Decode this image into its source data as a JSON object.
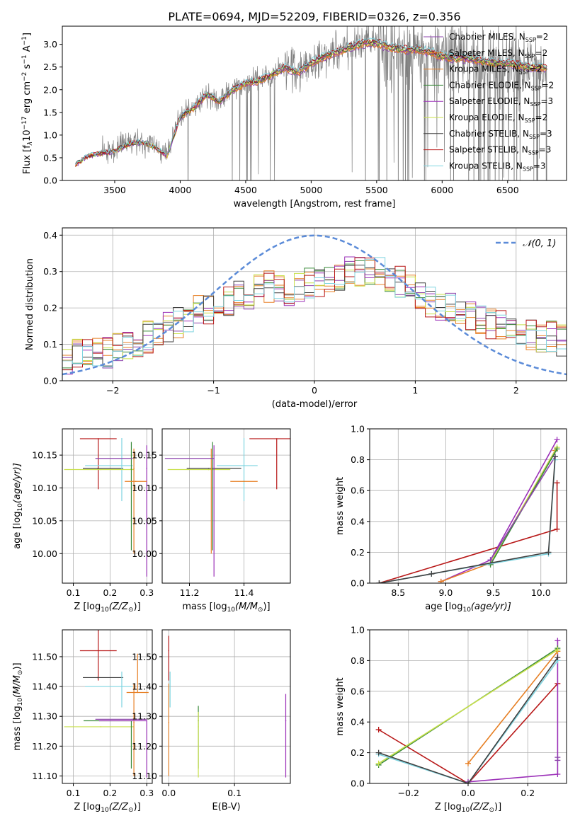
{
  "figure_title": "PLATE=0694, MJD=52209, FIBERID=0326, z=0.356",
  "colors": {
    "Chabrier MILES": "#8e44ad",
    "Salpeter MILES": "#e67e22",
    "Kroupa MILES": "#e8822a",
    "Chabrier ELODIE": "#3a8a3a",
    "Salpeter ELODIE": "#9b30b8",
    "Kroupa ELODIE": "#c8e04a",
    "Chabrier STELIB": "#404040",
    "Salpeter STELIB": "#b81818",
    "Kroupa STELIB": "#7fd4e0",
    "data": "#7f7f7f",
    "normal": "#5b8bd8"
  },
  "chart_data": [
    {
      "id": "spectrum",
      "type": "line",
      "title": "PLATE=0694, MJD=52209, FIBERID=0326, z=0.356",
      "xlabel": "wavelength [Angstrom, rest frame]",
      "ylabel_parts": [
        "Flux [f",
        "λ",
        "10",
        "−17",
        " erg cm",
        "−2",
        " s",
        "−1",
        " A",
        "−1",
        "]"
      ],
      "xlim": [
        3100,
        6950
      ],
      "ylim": [
        0,
        3.4
      ],
      "xticks": [
        3500,
        4000,
        4500,
        5000,
        5500,
        6000,
        6500
      ],
      "yticks": [
        0.0,
        0.5,
        1.0,
        1.5,
        2.0,
        2.5,
        3.0
      ],
      "grid": false,
      "legend_position": "top-right",
      "legend": [
        {
          "label": "Chabrier MILES, N",
          "sub": "SSP",
          "tail": "=2",
          "key": "Chabrier MILES"
        },
        {
          "label": "Salpeter MILES, N",
          "sub": "SSP",
          "tail": "=2",
          "key": "Salpeter MILES"
        },
        {
          "label": "Kroupa MILES, N",
          "sub": "SSP",
          "tail": "=2",
          "key": "Kroupa MILES"
        },
        {
          "label": "Chabrier ELODIE, N",
          "sub": "SSP",
          "tail": "=2",
          "key": "Chabrier ELODIE"
        },
        {
          "label": "Salpeter ELODIE, N",
          "sub": "SSP",
          "tail": "=3",
          "key": "Salpeter ELODIE"
        },
        {
          "label": "Kroupa ELODIE, N",
          "sub": "SSP",
          "tail": "=2",
          "key": "Kroupa ELODIE"
        },
        {
          "label": "Chabrier STELIB, N",
          "sub": "SSP",
          "tail": "=3",
          "key": "Chabrier STELIB"
        },
        {
          "label": "Salpeter STELIB, N",
          "sub": "SSP",
          "tail": "=3",
          "key": "Salpeter STELIB"
        },
        {
          "label": "Kroupa STELIB, N",
          "sub": "SSP",
          "tail": "=3",
          "key": "Kroupa STELIB"
        }
      ],
      "continuum": {
        "x": [
          3200,
          3300,
          3400,
          3500,
          3600,
          3700,
          3800,
          3900,
          4000,
          4100,
          4200,
          4300,
          4400,
          4500,
          4600,
          4700,
          4800,
          4900,
          5000,
          5100,
          5200,
          5300,
          5400,
          5500,
          5600,
          5700,
          5800,
          5900,
          6000,
          6100,
          6200,
          6300,
          6400,
          6500,
          6600,
          6700,
          6800
        ],
        "y": [
          0.35,
          0.55,
          0.6,
          0.65,
          0.8,
          0.85,
          0.75,
          0.55,
          1.4,
          1.6,
          1.9,
          1.75,
          2.0,
          2.15,
          2.2,
          2.35,
          2.5,
          2.4,
          2.6,
          2.75,
          2.85,
          2.95,
          3.05,
          3.05,
          2.95,
          2.9,
          2.9,
          2.85,
          2.75,
          2.7,
          2.7,
          2.65,
          2.6,
          2.6,
          2.55,
          2.5,
          2.5
        ]
      },
      "data_range": [
        3200,
        6800
      ]
    },
    {
      "id": "residuals",
      "type": "bar",
      "xlabel": "(data-model)/error",
      "ylabel": "Normed distribution",
      "xlim": [
        -2.5,
        2.5
      ],
      "ylim": [
        0,
        0.42
      ],
      "xticks": [
        -2,
        -1,
        0,
        1,
        2
      ],
      "yticks": [
        0.0,
        0.1,
        0.2,
        0.3,
        0.4
      ],
      "grid": true,
      "legend_position": "top-right",
      "normal_label": "𝒩(0, 1)",
      "bin_edges": [
        -2.5,
        -2.4,
        -2.3,
        -2.2,
        -2.1,
        -2.0,
        -1.9,
        -1.8,
        -1.7,
        -1.6,
        -1.5,
        -1.4,
        -1.3,
        -1.2,
        -1.1,
        -1.0,
        -0.9,
        -0.8,
        -0.7,
        -0.6,
        -0.5,
        -0.4,
        -0.3,
        -0.2,
        -0.1,
        0.0,
        0.1,
        0.2,
        0.3,
        0.4,
        0.5,
        0.6,
        0.7,
        0.8,
        0.9,
        1.0,
        1.1,
        1.2,
        1.3,
        1.4,
        1.5,
        1.6,
        1.7,
        1.8,
        1.9,
        2.0,
        2.1,
        2.2,
        2.3,
        2.4,
        2.5
      ],
      "envelope": [
        0.06,
        0.07,
        0.08,
        0.08,
        0.08,
        0.09,
        0.1,
        0.11,
        0.12,
        0.13,
        0.15,
        0.16,
        0.17,
        0.19,
        0.2,
        0.21,
        0.22,
        0.23,
        0.24,
        0.25,
        0.26,
        0.26,
        0.25,
        0.26,
        0.27,
        0.27,
        0.28,
        0.29,
        0.3,
        0.3,
        0.31,
        0.3,
        0.28,
        0.27,
        0.26,
        0.24,
        0.22,
        0.21,
        0.2,
        0.19,
        0.18,
        0.17,
        0.16,
        0.15,
        0.14,
        0.14,
        0.13,
        0.12,
        0.12,
        0.11
      ]
    },
    {
      "id": "age-vs-Z",
      "type": "scatter",
      "xlabel_parts": [
        "Z [log",
        "10",
        "(Z/Z",
        "⊙",
        ")]"
      ],
      "ylabel_parts": [
        "age  [log",
        "10",
        "(age/yr)]"
      ],
      "xlim": [
        0.07,
        0.315
      ],
      "ylim": [
        9.955,
        10.19
      ],
      "xticks": [
        0.1,
        0.2,
        0.3
      ],
      "yticks": [
        10.0,
        10.05,
        10.1,
        10.15
      ],
      "grid": true,
      "points": [
        {
          "key": "Salpeter STELIB",
          "x": 0.168,
          "y": 10.175,
          "xerr": [
            0.05,
            0.05
          ],
          "yerr": [
            0.077,
            0.0
          ]
        },
        {
          "key": "Chabrier STELIB",
          "x": 0.166,
          "y": 10.13,
          "xerr": [
            0.04,
            0.07
          ],
          "yerr": [
            0.0,
            0.0
          ]
        },
        {
          "key": "Kroupa STELIB",
          "x": 0.232,
          "y": 10.134,
          "xerr": [
            0.1,
            0.03
          ],
          "yerr": [
            0.054,
            0.042
          ]
        },
        {
          "key": "Kroupa ELODIE",
          "x": 0.175,
          "y": 10.128,
          "xerr": [
            0.1,
            0.09
          ],
          "yerr": [
            0.0,
            0.0
          ]
        },
        {
          "key": "Chabrier ELODIE",
          "x": 0.258,
          "y": 10.13,
          "xerr": [
            0.0,
            0.0
          ],
          "yerr": [
            0.125,
            0.04
          ]
        },
        {
          "key": "Kroupa MILES",
          "x": 0.265,
          "y": 10.13,
          "xerr": [
            0.0,
            0.0
          ],
          "yerr": [
            0.13,
            0.03
          ]
        },
        {
          "key": "Salpeter ELODIE",
          "x": 0.3,
          "y": 10.13,
          "xerr": [
            0.0,
            0.0
          ],
          "yerr": [
            0.165,
            0.035
          ]
        },
        {
          "key": "Chabrier MILES",
          "x": 0.26,
          "y": 10.145,
          "xerr": [
            0.1,
            0.0
          ],
          "yerr": [
            0.0,
            0.0
          ]
        },
        {
          "key": "Salpeter MILES",
          "x": 0.27,
          "y": 10.11,
          "xerr": [
            0.03,
            0.03
          ],
          "yerr": [
            0.0,
            0.0
          ]
        }
      ]
    },
    {
      "id": "age-vs-mass",
      "type": "scatter",
      "xlabel_parts": [
        "mass [log",
        "10",
        "(M/M",
        "⊙",
        ")]"
      ],
      "ylabel_parts": [],
      "xlim": [
        11.1,
        11.57
      ],
      "ylim": [
        9.955,
        10.19
      ],
      "xticks": [
        11.2,
        11.4
      ],
      "yticks": [
        10.0,
        10.05,
        10.1,
        10.15
      ],
      "grid": true,
      "points": [
        {
          "key": "Salpeter STELIB",
          "x": 11.52,
          "y": 10.175,
          "xerr": [
            0.1,
            0.1
          ],
          "yerr": [
            0.077,
            0.0
          ]
        },
        {
          "key": "Chabrier STELIB",
          "x": 11.27,
          "y": 10.13,
          "xerr": [
            0.08,
            0.12
          ],
          "yerr": [
            0.0,
            0.0
          ]
        },
        {
          "key": "Kroupa STELIB",
          "x": 11.4,
          "y": 10.134,
          "xerr": [
            0.1,
            0.05
          ],
          "yerr": [
            0.054,
            0.042
          ]
        },
        {
          "key": "Kroupa ELODIE",
          "x": 11.27,
          "y": 10.128,
          "xerr": [
            0.15,
            0.08
          ],
          "yerr": [
            0.0,
            0.0
          ]
        },
        {
          "key": "Chabrier ELODIE",
          "x": 11.285,
          "y": 10.13,
          "xerr": [
            0.0,
            0.0
          ],
          "yerr": [
            0.125,
            0.04
          ]
        },
        {
          "key": "Kroupa MILES",
          "x": 11.28,
          "y": 10.13,
          "xerr": [
            0.0,
            0.0
          ],
          "yerr": [
            0.13,
            0.03
          ]
        },
        {
          "key": "Salpeter ELODIE",
          "x": 11.29,
          "y": 10.13,
          "xerr": [
            0.0,
            0.0
          ],
          "yerr": [
            0.165,
            0.035
          ]
        },
        {
          "key": "Chabrier MILES",
          "x": 11.29,
          "y": 10.145,
          "xerr": [
            0.18,
            0.0
          ],
          "yerr": [
            0.0,
            0.0
          ]
        },
        {
          "key": "Salpeter MILES",
          "x": 11.4,
          "y": 10.11,
          "xerr": [
            0.05,
            0.05
          ],
          "yerr": [
            0.0,
            0.0
          ]
        }
      ]
    },
    {
      "id": "weight-vs-age",
      "type": "line",
      "xlabel_parts": [
        "age  [log",
        "10",
        "(age/yr)]"
      ],
      "ylabel": "mass weight",
      "xlim": [
        8.2,
        10.27
      ],
      "ylim": [
        0,
        1.0
      ],
      "xticks": [
        8.5,
        9.0,
        9.5,
        10.0
      ],
      "yticks": [
        0.0,
        0.2,
        0.4,
        0.6,
        0.8,
        1.0
      ],
      "grid": true,
      "series": [
        {
          "key": "Salpeter STELIB",
          "x": [
            8.3,
            10.17,
            10.17
          ],
          "y": [
            0.0,
            0.35,
            0.65
          ]
        },
        {
          "key": "Salpeter ELODIE",
          "x": [
            8.95,
            9.47,
            10.17
          ],
          "y": [
            0.01,
            0.15,
            0.93
          ]
        },
        {
          "key": "Salpeter MILES",
          "x": [
            8.95,
            9.47,
            10.15
          ],
          "y": [
            0.01,
            0.13,
            0.86
          ]
        },
        {
          "key": "Kroupa ELODIE",
          "x": [
            9.47,
            10.17
          ],
          "y": [
            0.13,
            0.88
          ]
        },
        {
          "key": "Chabrier ELODIE",
          "x": [
            9.47,
            10.17
          ],
          "y": [
            0.12,
            0.87
          ]
        },
        {
          "key": "Chabrier MILES",
          "x": [
            9.47,
            10.15
          ],
          "y": [
            0.15,
            0.82
          ]
        },
        {
          "key": "Kroupa STELIB",
          "x": [
            8.3,
            8.85,
            10.08,
            10.15
          ],
          "y": [
            0.0,
            0.06,
            0.19,
            0.8
          ]
        },
        {
          "key": "Chabrier STELIB",
          "x": [
            8.3,
            8.85,
            10.08,
            10.15
          ],
          "y": [
            0.0,
            0.06,
            0.2,
            0.82
          ]
        }
      ]
    },
    {
      "id": "mass-vs-Z",
      "type": "scatter",
      "xlabel_parts": [
        "Z [log",
        "10",
        "(Z/Z",
        "⊙",
        ")]"
      ],
      "ylabel_parts": [
        "mass [log",
        "10",
        "(M/M",
        "⊙",
        ")]"
      ],
      "xlim": [
        0.07,
        0.315
      ],
      "ylim": [
        11.075,
        11.59
      ],
      "xticks": [
        0.1,
        0.2,
        0.3
      ],
      "yticks": [
        11.1,
        11.2,
        11.3,
        11.4,
        11.5
      ],
      "grid": true,
      "points": [
        {
          "key": "Salpeter STELIB",
          "x": 0.168,
          "y": 11.52,
          "xerr": [
            0.05,
            0.05
          ],
          "yerr": [
            0.1,
            0.1
          ]
        },
        {
          "key": "Chabrier STELIB",
          "x": 0.166,
          "y": 11.43,
          "xerr": [
            0.04,
            0.07
          ],
          "yerr": [
            0.0,
            0.0
          ]
        },
        {
          "key": "Kroupa STELIB",
          "x": 0.232,
          "y": 11.4,
          "xerr": [
            0.1,
            0.03
          ],
          "yerr": [
            0.07,
            0.05
          ]
        },
        {
          "key": "Kroupa ELODIE",
          "x": 0.175,
          "y": 11.265,
          "xerr": [
            0.1,
            0.09
          ],
          "yerr": [
            0.0,
            0.0
          ]
        },
        {
          "key": "Chabrier ELODIE",
          "x": 0.258,
          "y": 11.285,
          "xerr": [
            0.13,
            0.0
          ],
          "yerr": [
            0.16,
            0.0
          ]
        },
        {
          "key": "Kroupa MILES",
          "x": 0.265,
          "y": 11.28,
          "xerr": [
            0.0,
            0.0
          ],
          "yerr": [
            0.18,
            0.13
          ]
        },
        {
          "key": "Salpeter ELODIE",
          "x": 0.3,
          "y": 11.285,
          "xerr": [
            0.13,
            0.0
          ],
          "yerr": [
            0.19,
            0.0
          ]
        },
        {
          "key": "Chabrier MILES",
          "x": 0.26,
          "y": 11.29,
          "xerr": [
            0.1,
            0.04
          ],
          "yerr": [
            0.0,
            0.0
          ]
        },
        {
          "key": "Salpeter MILES",
          "x": 0.275,
          "y": 11.38,
          "xerr": [
            0.03,
            0.03
          ],
          "yerr": [
            0.0,
            0.13
          ]
        }
      ]
    },
    {
      "id": "mass-vs-EBV",
      "type": "scatter",
      "xlabel": "E(B-V)",
      "ylabel_parts": [],
      "xlim": [
        -0.01,
        0.185
      ],
      "ylim": [
        11.075,
        11.59
      ],
      "xticks": [
        0.0,
        0.1
      ],
      "yticks": [
        11.1,
        11.2,
        11.3,
        11.4,
        11.5
      ],
      "grid": true,
      "points": [
        {
          "key": "Salpeter STELIB",
          "x": 0.0,
          "y": 11.52,
          "xerr": [
            0.0,
            0.0
          ],
          "yerr": [
            0.1,
            0.05
          ]
        },
        {
          "key": "Kroupa STELIB",
          "x": 0.002,
          "y": 11.4,
          "xerr": [
            0.0,
            0.0
          ],
          "yerr": [
            0.07,
            0.05
          ]
        },
        {
          "key": "Kroupa MILES",
          "x": 0.0,
          "y": 11.28,
          "xerr": [
            0.0,
            0.0
          ],
          "yerr": [
            0.18,
            0.13
          ]
        },
        {
          "key": "Chabrier ELODIE",
          "x": 0.045,
          "y": 11.285,
          "xerr": [
            0.0,
            0.0
          ],
          "yerr": [
            0.16,
            0.05
          ]
        },
        {
          "key": "Kroupa ELODIE",
          "x": 0.045,
          "y": 11.265,
          "xerr": [
            0.0,
            0.0
          ],
          "yerr": [
            0.17,
            0.05
          ]
        },
        {
          "key": "Salpeter ELODIE",
          "x": 0.178,
          "y": 11.285,
          "xerr": [
            0.0,
            0.0
          ],
          "yerr": [
            0.19,
            0.09
          ]
        }
      ]
    },
    {
      "id": "weight-vs-Z",
      "type": "line",
      "xlabel_parts": [
        "Z [log",
        "10",
        "(Z/Z",
        "⊙",
        ")]"
      ],
      "ylabel": "mass weight",
      "xlim": [
        -0.33,
        0.33
      ],
      "ylim": [
        0,
        1.0
      ],
      "xticks": [
        -0.2,
        0.0,
        0.2
      ],
      "yticks": [
        0.0,
        0.2,
        0.4,
        0.6,
        0.8,
        1.0
      ],
      "grid": true,
      "series": [
        {
          "key": "Salpeter STELIB",
          "x": [
            -0.3,
            0.0,
            0.3
          ],
          "y": [
            0.35,
            0.0,
            0.65
          ]
        },
        {
          "key": "Salpeter ELODIE",
          "x": [
            0.0,
            0.3,
            0.3
          ],
          "y": [
            0.01,
            0.06,
            0.93
          ]
        },
        {
          "key": "Salpeter MILES",
          "x": [
            0.0,
            0.3
          ],
          "y": [
            0.13,
            0.86
          ]
        },
        {
          "key": "Chabrier ELODIE",
          "x": [
            -0.3,
            0.3
          ],
          "y": [
            0.12,
            0.88
          ]
        },
        {
          "key": "Kroupa ELODIE",
          "x": [
            -0.3,
            0.3
          ],
          "y": [
            0.13,
            0.87
          ]
        },
        {
          "key": "Kroupa STELIB",
          "x": [
            -0.3,
            0.0,
            0.3
          ],
          "y": [
            0.19,
            0.0,
            0.8
          ]
        },
        {
          "key": "Chabrier STELIB",
          "x": [
            -0.3,
            0.0,
            0.3
          ],
          "y": [
            0.2,
            0.0,
            0.82
          ]
        },
        {
          "key": "Chabrier MILES",
          "x": [
            0.3,
            0.3
          ],
          "y": [
            0.15,
            0.17
          ]
        }
      ]
    }
  ]
}
